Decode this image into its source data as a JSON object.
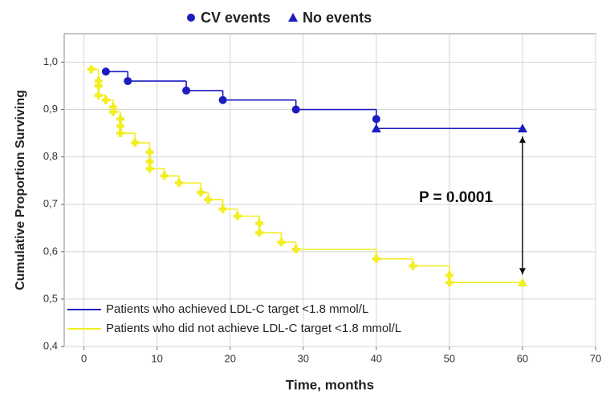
{
  "chart_data": {
    "type": "step",
    "xlabel": "Time, months",
    "ylabel": "Cumulative Proportion Surviving",
    "xlim": [
      -2.7,
      70
    ],
    "ylim": [
      0.4,
      1.06
    ],
    "xticks": [
      0,
      10,
      20,
      30,
      40,
      50,
      60,
      70
    ],
    "yticks": [
      {
        "value": 0.4,
        "label": "0,4"
      },
      {
        "value": 0.5,
        "label": "0,5"
      },
      {
        "value": 0.6,
        "label": "0,6"
      },
      {
        "value": 0.7,
        "label": "0,7"
      },
      {
        "value": 0.8,
        "label": "0,8"
      },
      {
        "value": 0.9,
        "label": "0,9"
      },
      {
        "value": 1.0,
        "label": "1,0"
      }
    ],
    "grid": true,
    "marker_legend": [
      {
        "name": "CV events",
        "marker": "circle"
      },
      {
        "name": "No events",
        "marker": "triangle"
      }
    ],
    "annotation": "P = 0.0001",
    "series": [
      {
        "name": "Patients who achieved LDL-C target <1.8 mmol/L",
        "color": "#1c1cc0",
        "x": [
          3,
          6,
          14,
          19,
          29,
          40,
          40,
          60
        ],
        "values": [
          0.98,
          0.96,
          0.94,
          0.92,
          0.9,
          0.88,
          0.86,
          0.86
        ],
        "markers": [
          "circle",
          "circle",
          "circle",
          "circle",
          "circle",
          "circle",
          "triangle",
          "triangle"
        ]
      },
      {
        "name": "Patients who did not achieve LDL-C target <1.8 mmol/L",
        "color": "#f2ee22",
        "x": [
          1,
          2,
          2,
          2,
          3,
          4,
          4,
          5,
          5,
          5,
          7,
          9,
          9,
          9,
          11,
          13,
          16,
          17,
          19,
          21,
          24,
          24,
          27,
          29,
          40,
          45,
          50,
          50,
          60
        ],
        "values": [
          0.985,
          0.96,
          0.95,
          0.93,
          0.92,
          0.905,
          0.895,
          0.88,
          0.865,
          0.85,
          0.83,
          0.81,
          0.79,
          0.775,
          0.76,
          0.745,
          0.725,
          0.71,
          0.69,
          0.675,
          0.66,
          0.64,
          0.62,
          0.605,
          0.585,
          0.57,
          0.55,
          0.535,
          0.535
        ],
        "markers": [
          "cross",
          "cross",
          "cross",
          "cross",
          "cross",
          "cross",
          "cross",
          "cross",
          "cross",
          "cross",
          "cross",
          "cross",
          "cross",
          "cross",
          "cross",
          "cross",
          "cross",
          "cross",
          "cross",
          "cross",
          "cross",
          "cross",
          "cross",
          "cross",
          "cross",
          "cross",
          "cross",
          "cross",
          "triangle"
        ]
      }
    ]
  }
}
